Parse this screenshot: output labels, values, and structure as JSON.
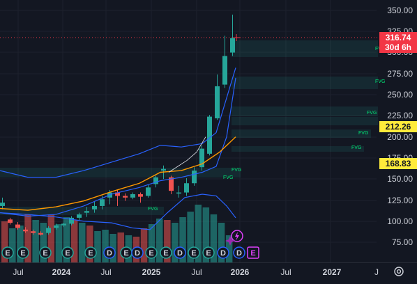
{
  "price_axis": {
    "labels": [
      "350.00",
      "325.00",
      "300.00",
      "275.00",
      "250.00",
      "225.00",
      "200.00",
      "175.00",
      "150.00",
      "125.00",
      "100.00",
      "75.00"
    ]
  },
  "time_axis": {
    "labels": [
      {
        "text": "Jul",
        "bold": false
      },
      {
        "text": "2024",
        "bold": true
      },
      {
        "text": "Jul",
        "bold": false
      },
      {
        "text": "2025",
        "bold": true
      },
      {
        "text": "Jul",
        "bold": false
      },
      {
        "text": "2026",
        "bold": true
      },
      {
        "text": "Jul",
        "bold": false
      },
      {
        "text": "2027",
        "bold": true
      },
      {
        "text": "J",
        "bold": false
      }
    ]
  },
  "last_price": {
    "value": "316.74",
    "countdown": "30d 6h"
  },
  "level_tags": [
    "212.26",
    "168.83"
  ],
  "fvg_label": "FVG",
  "event_badges": [
    "E",
    "E",
    "E",
    "E",
    "E",
    "D",
    "E",
    "D",
    "E",
    "E",
    "D",
    "E",
    "E",
    "D",
    "D",
    "E"
  ],
  "colors": {
    "background": "#131722",
    "up": "#26a69a",
    "down": "#ef5350",
    "price_tag": "#f23645",
    "level_tag": "#ffeb3b",
    "bands": "#2962ff",
    "ma": "#ff9800",
    "fvg": "#00e676"
  },
  "icons": [
    "lightning-icon",
    "spark-icon",
    "settings-icon"
  ]
}
